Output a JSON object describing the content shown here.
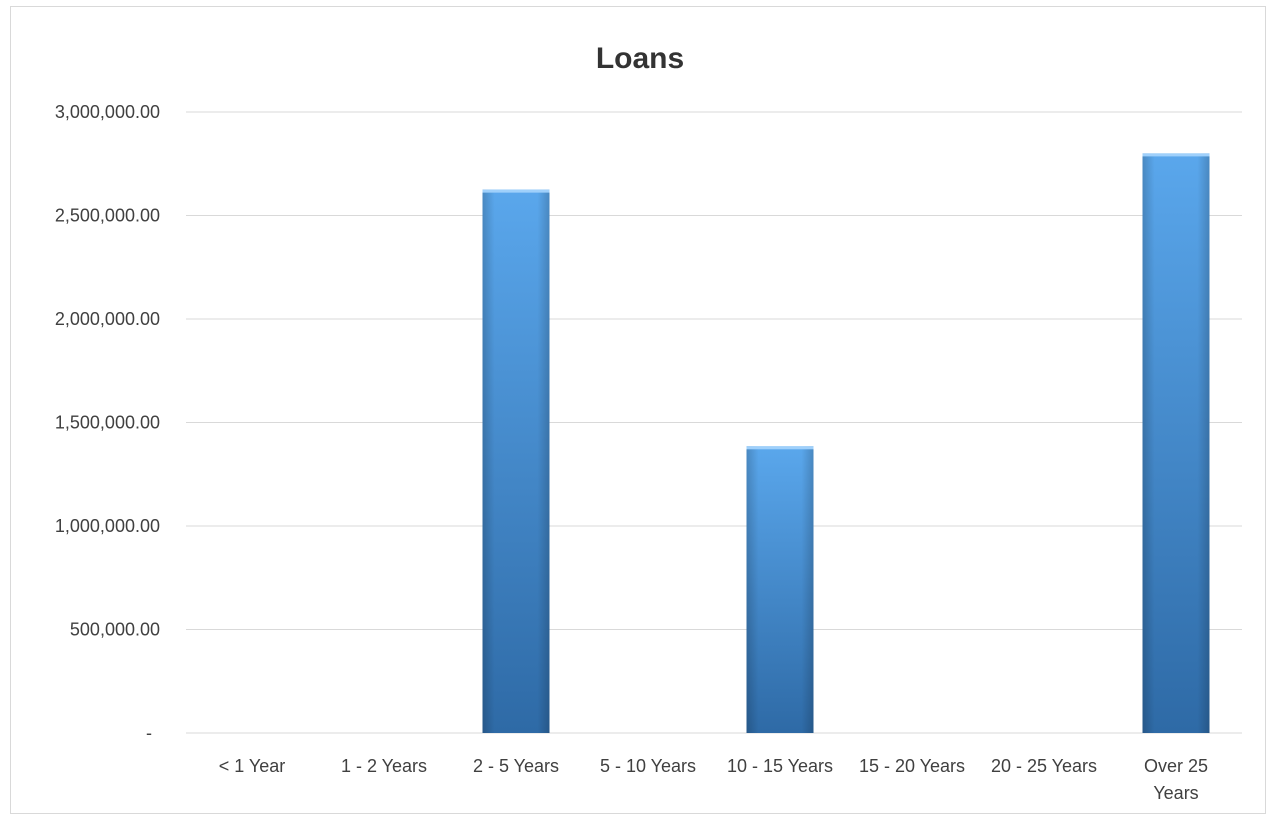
{
  "chart_data": {
    "type": "bar",
    "title": "Loans",
    "xlabel": "",
    "ylabel": "",
    "categories": [
      "< 1 Year",
      "1 - 2 Years",
      "2 - 5 Years",
      "5 - 10 Years",
      "10 - 15 Years",
      "15 - 20 Years",
      "20 - 25 Years",
      "Over 25 Years"
    ],
    "category_label_lines": [
      [
        "< 1 Year"
      ],
      [
        "1 - 2 Years"
      ],
      [
        "2 - 5 Years"
      ],
      [
        "5 - 10 Years"
      ],
      [
        "10 - 15 Years"
      ],
      [
        "15 - 20 Years"
      ],
      [
        "20 - 25 Years"
      ],
      [
        "Over 25",
        "Years"
      ]
    ],
    "values": [
      0,
      0,
      2625000,
      0,
      1385000,
      0,
      0,
      2800000
    ],
    "ylim": [
      0,
      3000000
    ],
    "yticks": [
      0,
      500000,
      1000000,
      1500000,
      2000000,
      2500000,
      3000000
    ],
    "ytick_labels": [
      "-",
      "500,000.00",
      "1,000,000.00",
      "1,500,000.00",
      "2,000,000.00",
      "2,500,000.00",
      "3,000,000.00"
    ],
    "grid": true,
    "legend": "none",
    "bar_color": "#3d85c6",
    "bar_color_light": "#5aa7ec",
    "bar_color_dark": "#2e6aa6"
  }
}
